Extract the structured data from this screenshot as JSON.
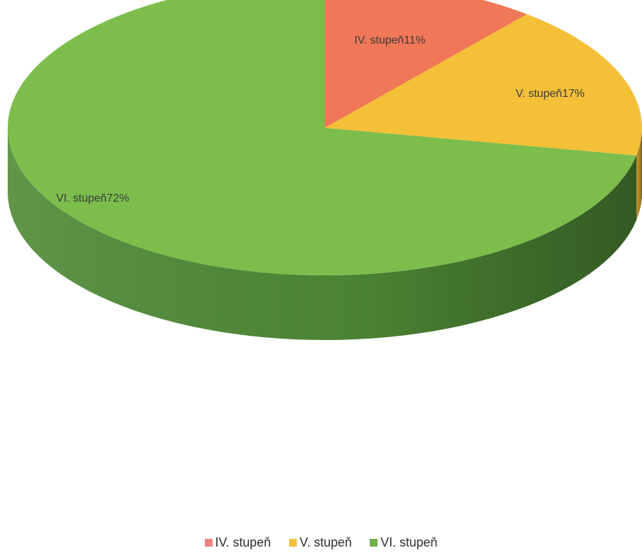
{
  "chart_data": {
    "type": "pie",
    "style": "3d",
    "title": "",
    "categories": [
      "IV. stupeň",
      "V. stupeň",
      "VI. stupeň"
    ],
    "values": [
      11,
      17,
      72
    ],
    "unit": "%",
    "data_labels": [
      "IV. stupeň11%",
      "V. stupeň17%",
      "VI. stupeň72%"
    ],
    "colors": [
      "#f07858",
      "#f4c038",
      "#7cbd4c"
    ],
    "side_colors": [
      "#b85038",
      "#b88a20",
      "#4f8a36"
    ],
    "legend_position": "bottom",
    "legend": [
      {
        "label": "IV. stupeň",
        "color": "#ee7f7f"
      },
      {
        "label": "V. stupeň",
        "color": "#f4c038"
      },
      {
        "label": "VI. stupeň",
        "color": "#6fb048"
      }
    ]
  }
}
